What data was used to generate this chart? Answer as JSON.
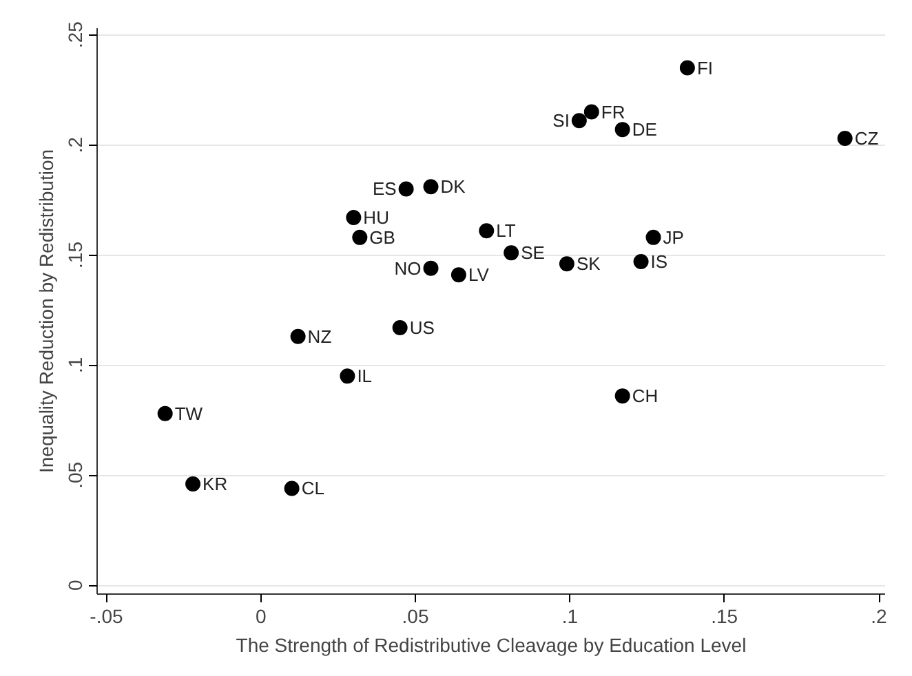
{
  "chart_data": {
    "type": "scatter",
    "xlabel": "The Strength of Redistributive Cleavage by Education Level",
    "ylabel": "Inequality Reduction by Redistribution",
    "x": [
      -0.031,
      -0.022,
      0.01,
      0.012,
      0.028,
      0.03,
      0.032,
      0.045,
      0.047,
      0.055,
      0.055,
      0.064,
      0.073,
      0.081,
      0.099,
      0.103,
      0.107,
      0.117,
      0.117,
      0.123,
      0.127,
      0.138,
      0.189
    ],
    "series": [
      {
        "color": "#000000",
        "values": [
          0.078,
          0.046,
          0.044,
          0.113,
          0.095,
          0.167,
          0.158,
          0.117,
          0.18,
          0.181,
          0.144,
          0.141,
          0.161,
          0.151,
          0.146,
          0.211,
          0.215,
          0.207,
          0.086,
          0.147,
          0.158,
          0.235,
          0.203
        ]
      }
    ],
    "annotations": [
      {
        "text": "TW",
        "x": -0.031,
        "y": 0.078
      },
      {
        "text": "KR",
        "x": -0.022,
        "y": 0.046
      },
      {
        "text": "CL",
        "x": 0.01,
        "y": 0.044
      },
      {
        "text": "NZ",
        "x": 0.012,
        "y": 0.113
      },
      {
        "text": "IL",
        "x": 0.028,
        "y": 0.095
      },
      {
        "text": "HU",
        "x": 0.03,
        "y": 0.167
      },
      {
        "text": "GB",
        "x": 0.032,
        "y": 0.158
      },
      {
        "text": "US",
        "x": 0.045,
        "y": 0.117
      },
      {
        "text": "ES",
        "x": 0.047,
        "y": 0.18
      },
      {
        "text": "DK",
        "x": 0.055,
        "y": 0.181
      },
      {
        "text": "NO",
        "x": 0.055,
        "y": 0.144
      },
      {
        "text": "LV",
        "x": 0.064,
        "y": 0.141
      },
      {
        "text": "LT",
        "x": 0.073,
        "y": 0.161
      },
      {
        "text": "SE",
        "x": 0.081,
        "y": 0.151
      },
      {
        "text": "SK",
        "x": 0.099,
        "y": 0.146
      },
      {
        "text": "SI",
        "x": 0.103,
        "y": 0.211
      },
      {
        "text": "FR",
        "x": 0.107,
        "y": 0.215
      },
      {
        "text": "DE",
        "x": 0.117,
        "y": 0.207
      },
      {
        "text": "CH",
        "x": 0.117,
        "y": 0.086
      },
      {
        "text": "IS",
        "x": 0.123,
        "y": 0.147
      },
      {
        "text": "JP",
        "x": 0.127,
        "y": 0.158
      },
      {
        "text": "FI",
        "x": 0.138,
        "y": 0.235
      },
      {
        "text": "CZ",
        "x": 0.189,
        "y": 0.203
      }
    ],
    "xlim": [
      -0.053,
      0.202
    ],
    "ylim": [
      -0.004,
      0.253
    ],
    "xticks": [
      {
        "value": -0.05,
        "label": "-.05"
      },
      0,
      {
        "value": 0.05,
        "label": ".05"
      },
      {
        "value": 0.1,
        "label": ".1"
      },
      {
        "value": 0.15,
        "label": ".15"
      },
      {
        "value": 0.2,
        "label": ".2"
      }
    ],
    "yticks": [
      0,
      {
        "value": 0.05,
        "label": ".05"
      },
      {
        "value": 0.1,
        "label": ".1"
      },
      {
        "value": 0.15,
        "label": ".15"
      },
      {
        "value": 0.2,
        "label": ".2"
      },
      {
        "value": 0.25,
        "label": ".25"
      }
    ],
    "grid": "y",
    "marker": "circle"
  }
}
